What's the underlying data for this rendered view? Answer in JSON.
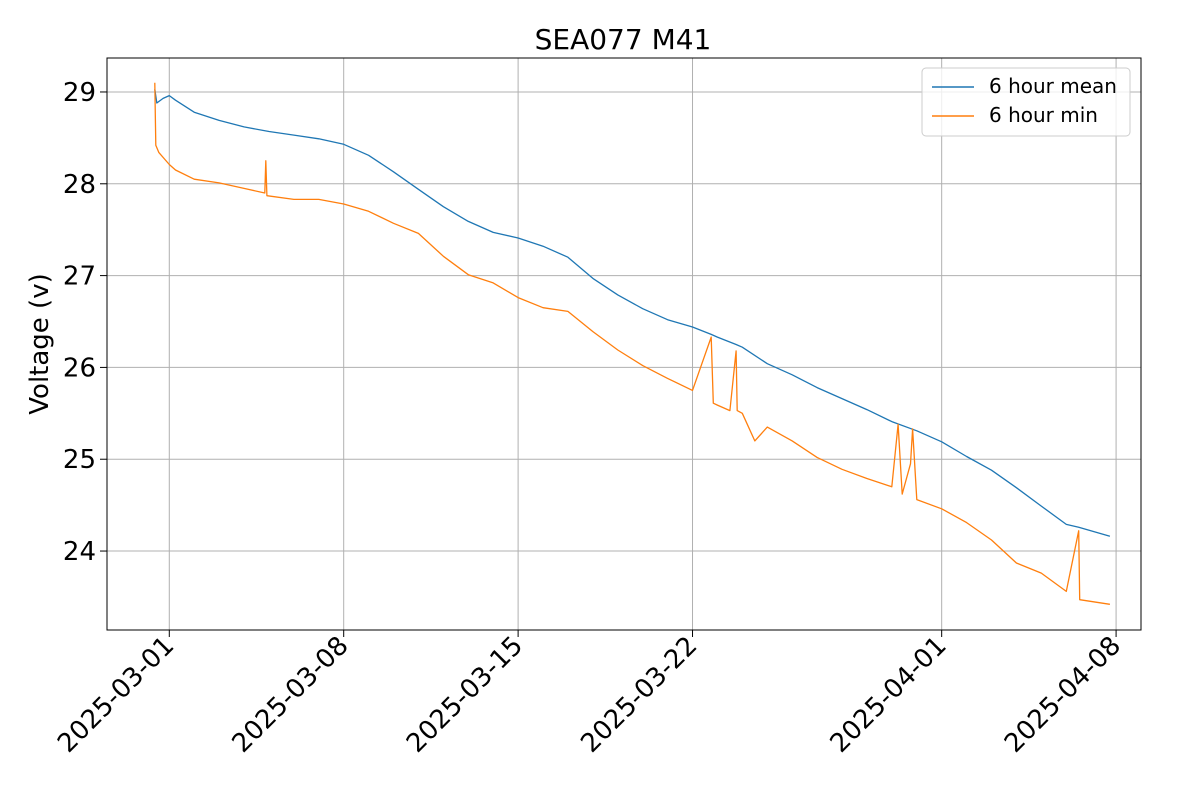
{
  "chart_data": {
    "type": "line",
    "title": "SEA077 M41",
    "xlabel": "",
    "ylabel": "Voltage (v)",
    "x_ticks": [
      "2025-03-01",
      "2025-03-08",
      "2025-03-15",
      "2025-03-22",
      "2025-04-01",
      "2025-04-08"
    ],
    "y_ticks": [
      "24",
      "25",
      "26",
      "27",
      "28",
      "29"
    ],
    "xlim": [
      "2025-02-26T12:00",
      "2025-04-09T00:00"
    ],
    "ylim": [
      23.14,
      29.37
    ],
    "grid": true,
    "legend_position": "top-right",
    "series": [
      {
        "name": "6 hour mean",
        "color": "#1f77b4",
        "points": [
          [
            "2025-02-28T10:00",
            29.03
          ],
          [
            "2025-02-28T12:00",
            28.88
          ],
          [
            "2025-02-28T18:00",
            28.93
          ],
          [
            "2025-03-01T00:00",
            28.96
          ],
          [
            "2025-03-01T06:00",
            28.91
          ],
          [
            "2025-03-02T00:00",
            28.78
          ],
          [
            "2025-03-03T00:00",
            28.69
          ],
          [
            "2025-03-04T00:00",
            28.62
          ],
          [
            "2025-03-05T00:00",
            28.57
          ],
          [
            "2025-03-06T00:00",
            28.53
          ],
          [
            "2025-03-07T00:00",
            28.49
          ],
          [
            "2025-03-08T00:00",
            28.43
          ],
          [
            "2025-03-09T00:00",
            28.31
          ],
          [
            "2025-03-10T00:00",
            28.13
          ],
          [
            "2025-03-11T00:00",
            27.94
          ],
          [
            "2025-03-12T00:00",
            27.75
          ],
          [
            "2025-03-13T00:00",
            27.59
          ],
          [
            "2025-03-14T00:00",
            27.47
          ],
          [
            "2025-03-15T00:00",
            27.41
          ],
          [
            "2025-03-16T00:00",
            27.32
          ],
          [
            "2025-03-17T00:00",
            27.2
          ],
          [
            "2025-03-18T00:00",
            26.97
          ],
          [
            "2025-03-19T00:00",
            26.79
          ],
          [
            "2025-03-20T00:00",
            26.64
          ],
          [
            "2025-03-21T00:00",
            26.52
          ],
          [
            "2025-03-22T00:00",
            26.44
          ],
          [
            "2025-03-22T18:00",
            26.36
          ],
          [
            "2025-03-23T00:00",
            26.33
          ],
          [
            "2025-03-23T18:00",
            26.25
          ],
          [
            "2025-03-24T00:00",
            26.22
          ],
          [
            "2025-03-25T00:00",
            26.04
          ],
          [
            "2025-03-26T00:00",
            25.92
          ],
          [
            "2025-03-27T00:00",
            25.78
          ],
          [
            "2025-03-28T00:00",
            25.66
          ],
          [
            "2025-03-29T00:00",
            25.54
          ],
          [
            "2025-03-30T00:00",
            25.41
          ],
          [
            "2025-03-31T00:00",
            25.31
          ],
          [
            "2025-04-01T00:00",
            25.19
          ],
          [
            "2025-04-02T00:00",
            25.03
          ],
          [
            "2025-04-03T00:00",
            24.88
          ],
          [
            "2025-04-04T00:00",
            24.69
          ],
          [
            "2025-04-05T00:00",
            24.49
          ],
          [
            "2025-04-06T00:00",
            24.29
          ],
          [
            "2025-04-06T12:00",
            24.26
          ],
          [
            "2025-04-07T18:00",
            24.16
          ]
        ]
      },
      {
        "name": "6 hour min",
        "color": "#ff7f0e",
        "points": [
          [
            "2025-02-28T10:00",
            29.1
          ],
          [
            "2025-02-28T11:00",
            28.42
          ],
          [
            "2025-02-28T14:00",
            28.34
          ],
          [
            "2025-03-01T00:00",
            28.21
          ],
          [
            "2025-03-01T06:00",
            28.15
          ],
          [
            "2025-03-02T00:00",
            28.05
          ],
          [
            "2025-03-03T00:00",
            28.01
          ],
          [
            "2025-03-04T00:00",
            27.95
          ],
          [
            "2025-03-04T20:00",
            27.9
          ],
          [
            "2025-03-04T21:00",
            28.25
          ],
          [
            "2025-03-04T22:00",
            27.87
          ],
          [
            "2025-03-06T00:00",
            27.83
          ],
          [
            "2025-03-07T00:00",
            27.83
          ],
          [
            "2025-03-08T00:00",
            27.78
          ],
          [
            "2025-03-09T00:00",
            27.7
          ],
          [
            "2025-03-10T00:00",
            27.57
          ],
          [
            "2025-03-11T00:00",
            27.46
          ],
          [
            "2025-03-12T00:00",
            27.21
          ],
          [
            "2025-03-13T00:00",
            27.01
          ],
          [
            "2025-03-14T00:00",
            26.92
          ],
          [
            "2025-03-15T00:00",
            26.76
          ],
          [
            "2025-03-16T00:00",
            26.65
          ],
          [
            "2025-03-17T00:00",
            26.61
          ],
          [
            "2025-03-18T00:00",
            26.39
          ],
          [
            "2025-03-19T00:00",
            26.19
          ],
          [
            "2025-03-20T00:00",
            26.02
          ],
          [
            "2025-03-21T00:00",
            25.88
          ],
          [
            "2025-03-22T00:00",
            25.75
          ],
          [
            "2025-03-22T18:00",
            26.33
          ],
          [
            "2025-03-22T20:00",
            25.61
          ],
          [
            "2025-03-23T00:00",
            25.59
          ],
          [
            "2025-03-23T12:00",
            25.53
          ],
          [
            "2025-03-23T18:00",
            26.18
          ],
          [
            "2025-03-23T19:00",
            25.53
          ],
          [
            "2025-03-24T00:00",
            25.5
          ],
          [
            "2025-03-24T12:00",
            25.2
          ],
          [
            "2025-03-25T00:00",
            25.35
          ],
          [
            "2025-03-26T00:00",
            25.2
          ],
          [
            "2025-03-27T00:00",
            25.02
          ],
          [
            "2025-03-28T00:00",
            24.89
          ],
          [
            "2025-03-29T00:00",
            24.79
          ],
          [
            "2025-03-30T00:00",
            24.7
          ],
          [
            "2025-03-30T06:00",
            25.38
          ],
          [
            "2025-03-30T10:00",
            24.62
          ],
          [
            "2025-03-30T18:00",
            24.95
          ],
          [
            "2025-03-30T20:00",
            25.33
          ],
          [
            "2025-03-31T00:00",
            24.56
          ],
          [
            "2025-04-01T00:00",
            24.46
          ],
          [
            "2025-04-02T00:00",
            24.31
          ],
          [
            "2025-04-03T00:00",
            24.12
          ],
          [
            "2025-04-04T00:00",
            23.87
          ],
          [
            "2025-04-05T00:00",
            23.76
          ],
          [
            "2025-04-06T00:00",
            23.56
          ],
          [
            "2025-04-06T12:00",
            24.22
          ],
          [
            "2025-04-06T13:00",
            23.47
          ],
          [
            "2025-04-07T18:00",
            23.42
          ]
        ]
      }
    ]
  }
}
